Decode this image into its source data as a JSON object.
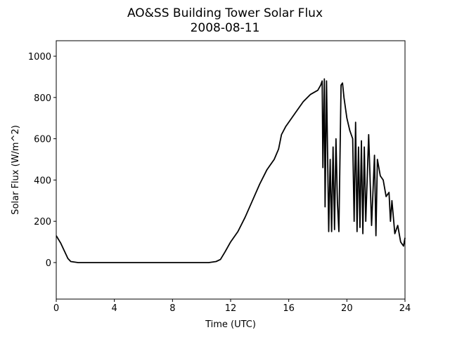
{
  "chart_data": {
    "type": "line",
    "title": "AO&SS Building Tower Solar Flux",
    "subtitle": "2008-08-11",
    "x_label": "Time (UTC)",
    "y_label": "Solar Flux (W/m^2)",
    "color": "#000000",
    "grid": false,
    "xlim": [
      0,
      24
    ],
    "xticks": [
      0,
      4,
      8,
      12,
      16,
      20,
      24
    ],
    "ylim": [
      -177,
      1075
    ],
    "yticks": [
      0,
      200,
      400,
      600,
      800,
      1000
    ],
    "x": [
      0,
      0.3,
      0.6,
      0.8,
      1.0,
      1.5,
      3,
      6,
      9,
      10.5,
      11,
      11.3,
      11.6,
      12,
      12.5,
      13,
      13.5,
      14,
      14.5,
      15,
      15.3,
      15.5,
      15.8,
      16,
      16.5,
      17,
      17.5,
      18,
      18.2,
      18.3,
      18.35,
      18.45,
      18.5,
      18.6,
      18.75,
      18.85,
      18.95,
      19.05,
      19.15,
      19.25,
      19.35,
      19.45,
      19.6,
      19.7,
      19.8,
      20,
      20.2,
      20.4,
      20.5,
      20.6,
      20.7,
      20.8,
      20.9,
      21.0,
      21.1,
      21.2,
      21.3,
      21.5,
      21.7,
      21.9,
      22.0,
      22.1,
      22.3,
      22.5,
      22.7,
      22.9,
      23.0,
      23.1,
      23.3,
      23.5,
      23.7,
      23.9,
      24
    ],
    "values": [
      130,
      95,
      50,
      20,
      5,
      0,
      0,
      0,
      0,
      0,
      5,
      15,
      50,
      100,
      150,
      220,
      300,
      380,
      450,
      500,
      550,
      620,
      660,
      680,
      730,
      780,
      815,
      835,
      860,
      880,
      460,
      890,
      270,
      880,
      150,
      500,
      150,
      560,
      160,
      600,
      290,
      150,
      860,
      870,
      800,
      700,
      640,
      600,
      200,
      680,
      150,
      560,
      170,
      590,
      140,
      560,
      200,
      620,
      180,
      520,
      130,
      500,
      420,
      400,
      320,
      340,
      200,
      300,
      140,
      180,
      100,
      80,
      120
    ]
  }
}
